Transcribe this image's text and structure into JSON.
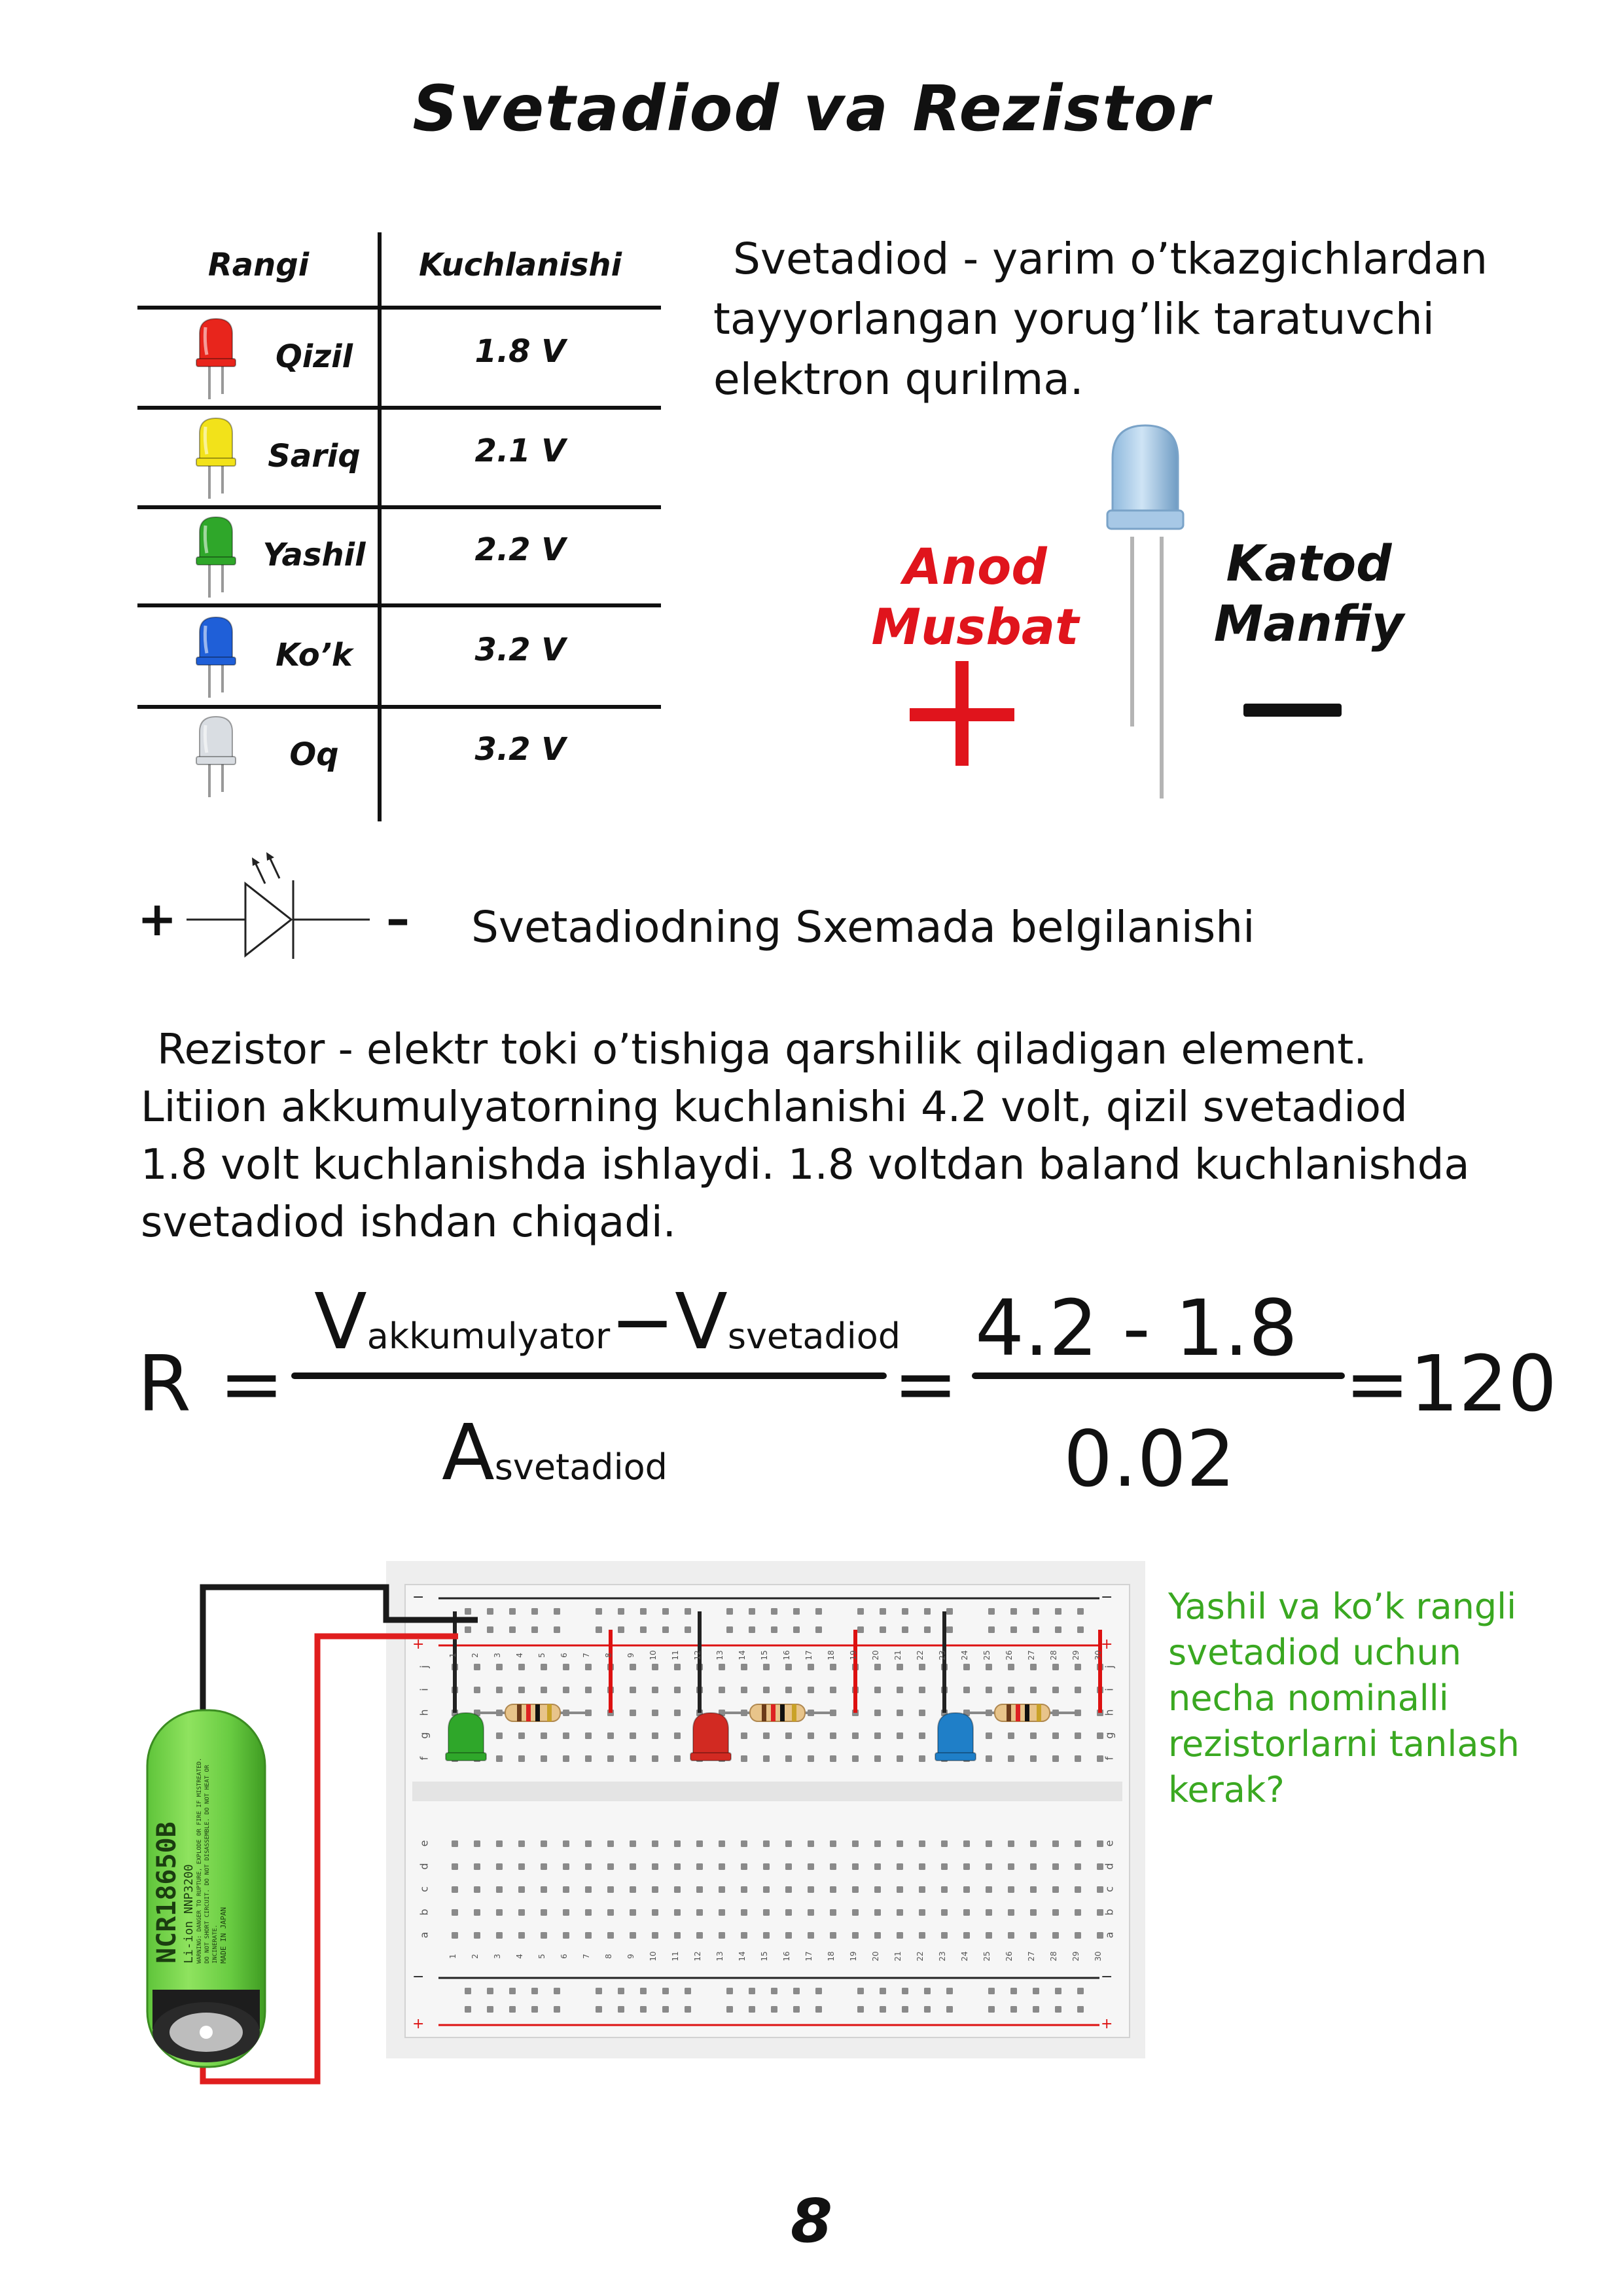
{
  "title": "Svetadiod va Rezistor",
  "table": {
    "headers": {
      "color": "Rangi",
      "voltage": "Kuchlanishi"
    },
    "rows": [
      {
        "color": "Qizil",
        "voltage": "1.8 V",
        "led_hex": "#e8251c"
      },
      {
        "color": "Sariq",
        "voltage": "2.1 V",
        "led_hex": "#f2e21a"
      },
      {
        "color": "Yashil",
        "voltage": "2.2 V",
        "led_hex": "#2fa72a"
      },
      {
        "color": "Ko’k",
        "voltage": "3.2 V",
        "led_hex": "#1f5fd8"
      },
      {
        "color": "Oq",
        "voltage": "3.2 V",
        "led_hex": "#d9dde2"
      }
    ]
  },
  "intro": {
    "line1": "Svetadiod - yarim o’tkazgichlardan",
    "line2": "tayyorlangan yorug’lik taratuvchi",
    "line3": "elektron qurilma."
  },
  "led_diagram": {
    "anode_line1": "Anod",
    "anode_line2": "Musbat",
    "cathode_line1": "Katod",
    "cathode_line2": "Manfiy",
    "plus": "+",
    "minus": "—"
  },
  "symbol": {
    "plus": "+",
    "minus": "–",
    "caption": "Svetadiodning Sxemada belgilanishi"
  },
  "paragraph": {
    "line1": "Rezistor - elektr toki o’tishiga qarshilik qiladigan element.",
    "line2": "Litiion akkumulyatorning kuchlanishi 4.2 volt, qizil svetadiod",
    "line3": "1.8 volt kuchlanishda ishlaydi. 1.8 voltdan baland kuchlanishda",
    "line4": "svetadiod ishdan chiqadi."
  },
  "formula": {
    "lhs": "R",
    "eq1": "=",
    "v": "V",
    "v_sub1": "akkumulyator",
    "minus": "−",
    "v_sub2": "svetadiod",
    "a": "A",
    "a_sub": "svetadiod",
    "eq2": "=",
    "num": "4.2 - 1.8",
    "den": "0.02",
    "result": "=120"
  },
  "battery": {
    "model": "NCR18650B",
    "type": "Li-ion NNP3200",
    "warning": "WARNING: DANGER TO RUPTURE, EXPLODE OR FIRE IF MISTREATED. DO NOT SHORT CIRCUIT. DO NOT DISASSEMBLE. DO NOT HEAT OR INCINERATE.",
    "origin": "MADE IN JAPAN"
  },
  "breadboard": {
    "top_row_letters": [
      "f",
      "g",
      "h",
      "i",
      "j"
    ],
    "bottom_row_letters": [
      "a",
      "b",
      "c",
      "d",
      "e"
    ],
    "columns": [
      "1",
      "2",
      "3",
      "4",
      "5",
      "6",
      "7",
      "8",
      "9",
      "10",
      "11",
      "12",
      "13",
      "14",
      "15",
      "16",
      "17",
      "18",
      "19",
      "20",
      "21",
      "22",
      "23",
      "24",
      "25",
      "26",
      "27",
      "28",
      "29",
      "30"
    ],
    "rail_minus": "−",
    "rail_plus": "+",
    "leds": [
      "#2fa72a",
      "#d22a22",
      "#1f7fc8"
    ]
  },
  "question": {
    "line1": "Yashil va ko’k rangli",
    "line2": "svetadiod uchun",
    "line3": "necha nominalli",
    "line4": "rezistorlarni tanlash",
    "line5": "kerak?"
  },
  "page_number": "8"
}
